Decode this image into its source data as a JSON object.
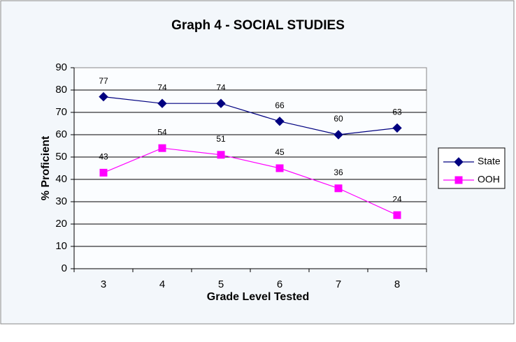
{
  "chart_data": {
    "type": "line",
    "title": "Graph 4 - SOCIAL STUDIES",
    "x_label": "Grade Level Tested",
    "y_label": "% Proficient",
    "categories": [
      "3",
      "4",
      "5",
      "6",
      "7",
      "8"
    ],
    "series": [
      {
        "name": "State",
        "color": "#000080",
        "marker": "diamond",
        "values": [
          77,
          74,
          74,
          66,
          60,
          63
        ]
      },
      {
        "name": "OOH",
        "color": "#ff00ff",
        "marker": "square",
        "values": [
          43,
          54,
          51,
          45,
          36,
          24
        ]
      }
    ],
    "ylim": [
      0,
      90
    ],
    "yticks": [
      0,
      10,
      20,
      30,
      40,
      50,
      60,
      70,
      80,
      90
    ],
    "grid": true,
    "legend": "right"
  }
}
